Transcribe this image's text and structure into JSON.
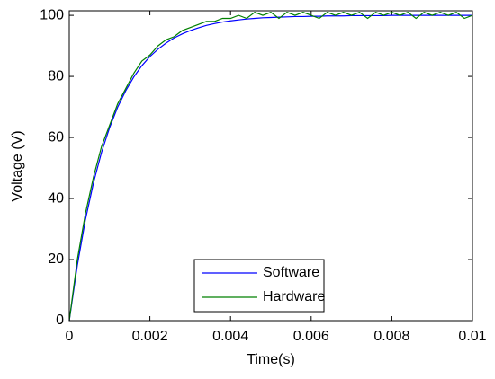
{
  "chart_data": {
    "type": "line",
    "xlabel": "Time(s)",
    "ylabel": "Voltage (V)",
    "x": [
      0,
      0.0002,
      0.0004,
      0.0006,
      0.0008,
      0.001,
      0.0012,
      0.0014,
      0.0016,
      0.0018,
      0.002,
      0.0022,
      0.0024,
      0.0026,
      0.0028,
      0.003,
      0.0032,
      0.0034,
      0.0036,
      0.0038,
      0.004,
      0.0042,
      0.0044,
      0.0046,
      0.0048,
      0.005,
      0.0052,
      0.0054,
      0.0056,
      0.0058,
      0.006,
      0.0062,
      0.0064,
      0.0066,
      0.0068,
      0.007,
      0.0072,
      0.0074,
      0.0076,
      0.0078,
      0.008,
      0.0082,
      0.0084,
      0.0086,
      0.0088,
      0.009,
      0.0092,
      0.0094,
      0.0096,
      0.0098,
      0.01
    ],
    "series": [
      {
        "name": "Software",
        "color": "#0000ff",
        "values": [
          0,
          18.1,
          33.0,
          45.1,
          55.1,
          63.2,
          69.9,
          75.3,
          79.8,
          83.5,
          86.5,
          88.9,
          90.9,
          92.6,
          93.9,
          95.0,
          95.9,
          96.7,
          97.3,
          97.8,
          98.2,
          98.5,
          98.8,
          99.0,
          99.2,
          99.3,
          99.4,
          99.5,
          99.6,
          99.6,
          99.7,
          99.7,
          99.8,
          99.8,
          99.8,
          99.9,
          99.9,
          99.9,
          99.9,
          99.9,
          100,
          100,
          100,
          100,
          100,
          100,
          100,
          100,
          100,
          100,
          100
        ]
      },
      {
        "name": "Hardware",
        "color": "#008000",
        "values": [
          0,
          20,
          35,
          47,
          57,
          64,
          71,
          76,
          81,
          85,
          87,
          90,
          92,
          93,
          95,
          96,
          97,
          98,
          98,
          99,
          99,
          100,
          99,
          101,
          100,
          101,
          99,
          101,
          100,
          101,
          100,
          99,
          101,
          100,
          101,
          100,
          101,
          99,
          101,
          100,
          101,
          100,
          101,
          99,
          101,
          100,
          101,
          100,
          101,
          99,
          100
        ]
      }
    ],
    "xlim": [
      0,
      0.01
    ],
    "xticks": [
      0,
      0.002,
      0.004,
      0.006,
      0.008,
      0.01
    ],
    "ylim": [
      0,
      101.5
    ],
    "yticks": [
      0,
      20,
      40,
      60,
      80,
      100
    ],
    "grid": false,
    "legend": "bottom"
  }
}
